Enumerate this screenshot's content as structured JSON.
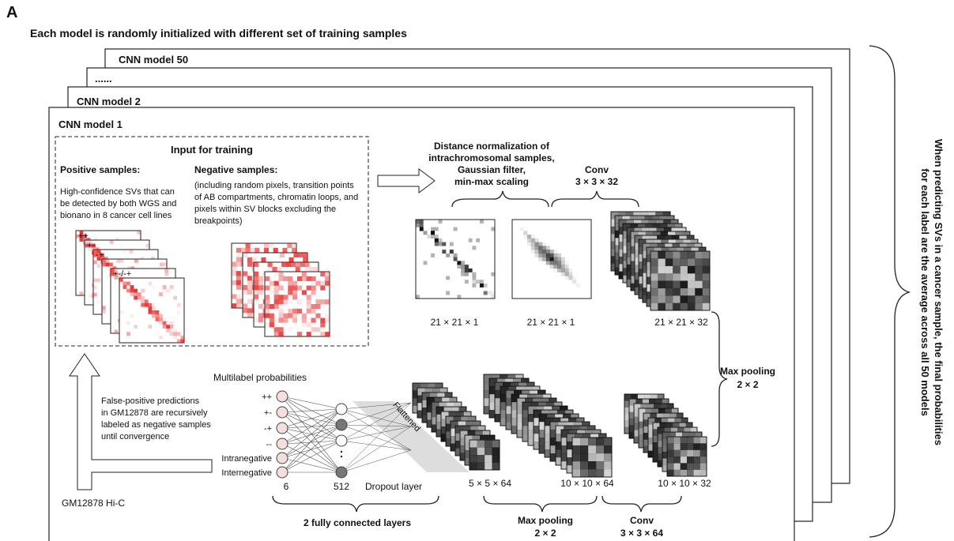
{
  "panel_label": "A",
  "title": "Each model is randomly initialized with different set of training samples",
  "models": [
    "CNN model 50",
    "......",
    "CNN model 2",
    "CNN model 1"
  ],
  "input": {
    "title": "Input for training",
    "positive": {
      "label": "Positive samples:",
      "description": [
        "High-confidence SVs that can",
        "be detected by both WGS and",
        "bionano in 8 cancer cell lines"
      ]
    },
    "negative": {
      "label": "Negative samples:",
      "description": [
        "(including random pixels, transition points",
        "of AB compartments, chromatin loops, and",
        "pixels within SV blocks excluding the",
        "breakpoints)"
      ]
    },
    "heatmap_labels": [
      "++",
      "+-",
      "-+",
      "+-/-+"
    ]
  },
  "preprocessing": [
    "Distance normalization of",
    "intrachromosomal samples,",
    "Gaussian filter,",
    "min-max scaling"
  ],
  "conv1": {
    "label": "Conv",
    "kernel": "3 × 3 × 32"
  },
  "shapes_top": [
    "21 × 21 × 1",
    "21 × 21 × 1",
    "21 × 21 × 32"
  ],
  "pool1": {
    "label": "Max pooling",
    "kernel": "2 × 2"
  },
  "shapes_bottom": [
    "5 × 5 × 64",
    "10 × 10 × 64",
    "10 × 10 × 32"
  ],
  "pool2": {
    "label": "Max pooling",
    "kernel": "2 × 2"
  },
  "conv2": {
    "label": "Conv",
    "kernel": "3 × 3 × 64"
  },
  "flattened": "Flattened",
  "output": {
    "title": "Multilabel probabilities",
    "labels": [
      "++",
      "+-",
      "-+",
      "--",
      "Intranegative",
      "Internegative"
    ],
    "size": "6"
  },
  "hidden": {
    "size": "512",
    "dropout": "Dropout layer"
  },
  "dense_label": "2 fully connected layers",
  "feedback": [
    "False-positive predictions",
    "in GM12878 are recursively",
    "labeled as negative samples",
    "until convergence"
  ],
  "source": "GM12878 Hi-C",
  "ensemble_note": [
    "When predicting SVs in a cancer sample, the final probabilities",
    "for each label are the average across all 50 models"
  ]
}
